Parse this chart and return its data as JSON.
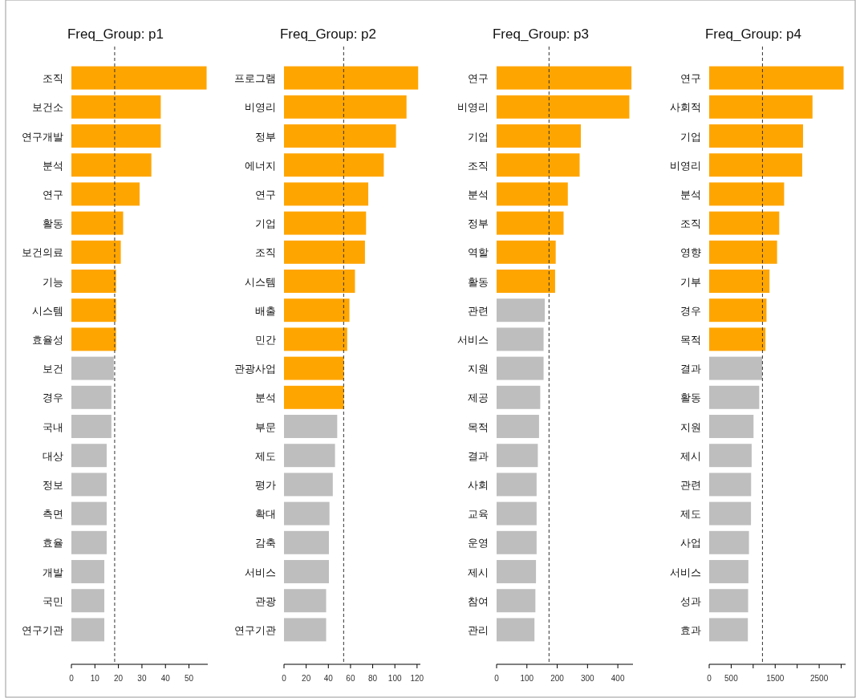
{
  "chart_data": [
    {
      "type": "bar",
      "orientation": "horizontal",
      "title": "Freq_Group: p1",
      "categories": [
        "조직",
        "보건소",
        "연구개발",
        "분석",
        "연구",
        "활동",
        "보건의료",
        "기능",
        "시스템",
        "효율성",
        "보건",
        "경우",
        "국내",
        "대상",
        "정보",
        "측면",
        "효율",
        "개발",
        "국민",
        "연구기관"
      ],
      "values": [
        57.5,
        38,
        38,
        34,
        29,
        22,
        21,
        19,
        19,
        19,
        18,
        17,
        17,
        15,
        15,
        15,
        15,
        14,
        14,
        14
      ],
      "colors": [
        "#ffa500",
        "#ffa500",
        "#ffa500",
        "#ffa500",
        "#ffa500",
        "#ffa500",
        "#ffa500",
        "#ffa500",
        "#ffa500",
        "#ffa500",
        "#bebebe",
        "#bebebe",
        "#bebebe",
        "#bebebe",
        "#bebebe",
        "#bebebe",
        "#bebebe",
        "#bebebe",
        "#bebebe",
        "#bebebe"
      ],
      "xlim": [
        0,
        58
      ],
      "xticks": [
        0,
        10,
        20,
        30,
        40,
        50
      ],
      "ref_lines": [
        {
          "axis": "x",
          "value": 18.4,
          "line_style": "dashed",
          "color": "#333333"
        }
      ]
    },
    {
      "type": "bar",
      "orientation": "horizontal",
      "title": "Freq_Group: p2",
      "categories": [
        "프로그램",
        "비영리",
        "정부",
        "에너지",
        "연구",
        "기업",
        "조직",
        "시스템",
        "배출",
        "민간",
        "관광사업",
        "분석",
        "부문",
        "제도",
        "평가",
        "확대",
        "감축",
        "서비스",
        "관광",
        "연구기관"
      ],
      "values": [
        121,
        110.5,
        101,
        90,
        76,
        74,
        73,
        64,
        59,
        57,
        54,
        54,
        48,
        46,
        44,
        41,
        40.5,
        40.5,
        38,
        38
      ],
      "colors": [
        "#ffa500",
        "#ffa500",
        "#ffa500",
        "#ffa500",
        "#ffa500",
        "#ffa500",
        "#ffa500",
        "#ffa500",
        "#ffa500",
        "#ffa500",
        "#ffa500",
        "#ffa500",
        "#bebebe",
        "#bebebe",
        "#bebebe",
        "#bebebe",
        "#bebebe",
        "#bebebe",
        "#bebebe",
        "#bebebe"
      ],
      "xlim": [
        0,
        123
      ],
      "xticks": [
        0,
        20,
        40,
        60,
        80,
        100,
        120
      ],
      "ref_lines": [
        {
          "axis": "x",
          "value": 53.8,
          "line_style": "dashed",
          "color": "#333333"
        }
      ]
    },
    {
      "type": "bar",
      "orientation": "horizontal",
      "title": "Freq_Group: p3",
      "categories": [
        "연구",
        "비영리",
        "기업",
        "조직",
        "분석",
        "정부",
        "역할",
        "활동",
        "관련",
        "서비스",
        "지원",
        "제공",
        "목적",
        "결과",
        "사회",
        "교육",
        "운영",
        "제시",
        "참여",
        "관리"
      ],
      "values": [
        445,
        438,
        278,
        274,
        235,
        221,
        195,
        193,
        159,
        155,
        155,
        144,
        140,
        136,
        132,
        132,
        132,
        130,
        128,
        125
      ],
      "colors": [
        "#ffa500",
        "#ffa500",
        "#ffa500",
        "#ffa500",
        "#ffa500",
        "#ffa500",
        "#ffa500",
        "#ffa500",
        "#bebebe",
        "#bebebe",
        "#bebebe",
        "#bebebe",
        "#bebebe",
        "#bebebe",
        "#bebebe",
        "#bebebe",
        "#bebebe",
        "#bebebe",
        "#bebebe",
        "#bebebe"
      ],
      "xlim": [
        0,
        450
      ],
      "xticks": [
        0,
        100,
        200,
        300,
        400
      ],
      "ref_lines": [
        {
          "axis": "x",
          "value": 173,
          "line_style": "dashed",
          "color": "#333333"
        }
      ]
    },
    {
      "type": "bar",
      "orientation": "horizontal",
      "title": "Freq_Group: p4",
      "categories": [
        "연구",
        "사회적",
        "기업",
        "비영리",
        "분석",
        "조직",
        "영향",
        "기부",
        "경우",
        "목적",
        "결과",
        "활동",
        "지원",
        "제시",
        "관련",
        "제도",
        "사업",
        "서비스",
        "성과",
        "효과"
      ],
      "values": [
        3055,
        2348,
        2133,
        2114,
        1703,
        1592,
        1543,
        1371,
        1303,
        1279,
        1205,
        1137,
        1008,
        965,
        953,
        950,
        904,
        891,
        885,
        879
      ],
      "colors": [
        "#ffa500",
        "#ffa500",
        "#ffa500",
        "#ffa500",
        "#ffa500",
        "#ffa500",
        "#ffa500",
        "#ffa500",
        "#ffa500",
        "#ffa500",
        "#bebebe",
        "#bebebe",
        "#bebebe",
        "#bebebe",
        "#bebebe",
        "#bebebe",
        "#bebebe",
        "#bebebe",
        "#bebebe",
        "#bebebe"
      ],
      "xlim": [
        0,
        3100
      ],
      "xticks": [
        0,
        500,
        {
          "value": 1000,
          "label": null
        },
        1500,
        {
          "value": 2000,
          "label": null
        },
        2500,
        {
          "value": 3000,
          "label": null
        }
      ],
      "ref_lines": [
        {
          "axis": "x",
          "value": 1211,
          "line_style": "dashed",
          "color": "#333333"
        }
      ]
    }
  ]
}
